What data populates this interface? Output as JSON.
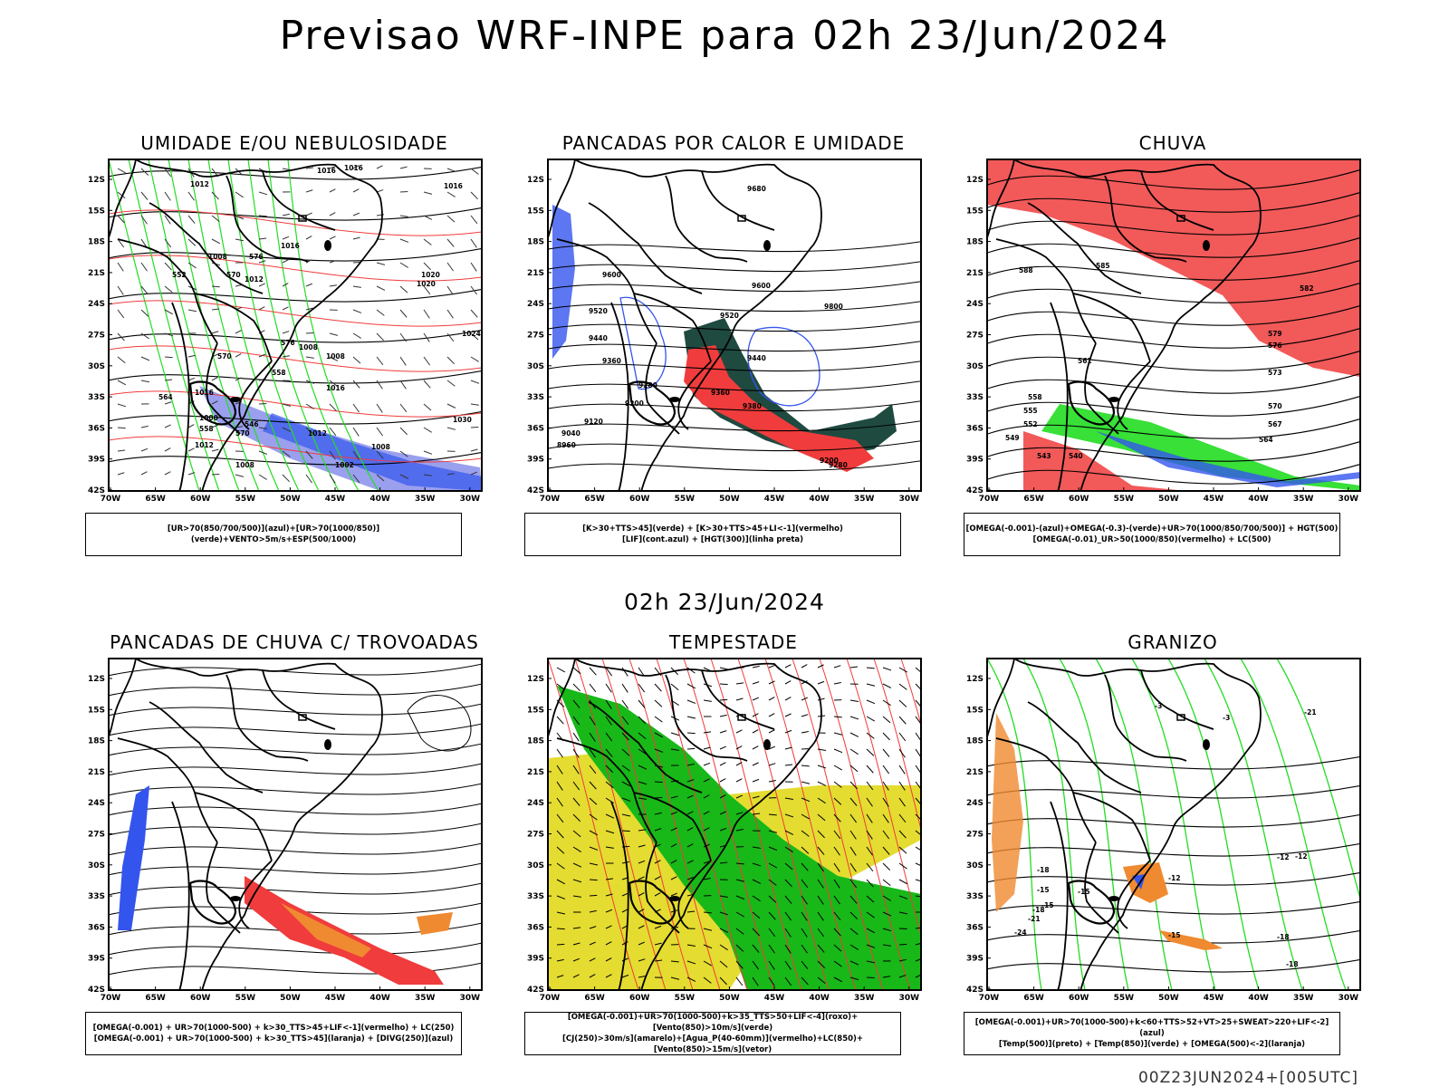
{
  "title": "Previsao WRF-INPE  para 02h 23/Jun/2024",
  "mid_title": "02h 23/Jun/2024",
  "footer": "00Z23JUN2024+[005UTC]",
  "axes": {
    "lat_ticks": [
      "12S",
      "15S",
      "18S",
      "21S",
      "24S",
      "27S",
      "30S",
      "33S",
      "36S",
      "39S",
      "42S"
    ],
    "lon_ticks": [
      "70W",
      "65W",
      "60W",
      "55W",
      "50W",
      "45W",
      "40W",
      "35W",
      "30W"
    ]
  },
  "colors": {
    "red": "#f03c3c",
    "green": "#22dd22",
    "blue": "#3355ee",
    "lavender": "#9aa0ee",
    "teal": "#1f4a40",
    "orange": "#f08a30",
    "yellow": "#e4dc30",
    "dkgreen": "#18b818"
  },
  "panels": [
    {
      "id": "umidade",
      "title": "UMIDADE E/OU NEBULOSIDADE",
      "legend": [
        "[UR>70(850/700/500)](azul)+[UR>70(1000/850)](verde)+VENTO>5m/s+ESP(500/1000)"
      ],
      "labels": [
        "1012",
        "1016",
        "1016",
        "1008",
        "1016",
        "1012",
        "1008",
        "1020",
        "1016",
        "1012",
        "1024",
        "1008",
        "1000",
        "1008",
        "1012",
        "1016",
        "1020",
        "1016",
        "1008",
        "1002",
        "1030",
        "570",
        "576",
        "576",
        "570",
        "564",
        "558",
        "552",
        "546",
        "570",
        "558"
      ]
    },
    {
      "id": "pancadas_calor",
      "title": "PANCADAS POR CALOR E UMIDADE",
      "legend": [
        "[K>30+TTS>45](verde) + [K>30+TTS>45+LI<-1](vermelho)",
        "[LIF](cont.azul) + [HGT(300)](linha preta)"
      ],
      "labels": [
        "9680",
        "9600",
        "9600",
        "9520",
        "9800",
        "9520",
        "9440",
        "9360",
        "9280",
        "9200",
        "9120",
        "9040",
        "8960",
        "9440",
        "9380",
        "9280",
        "9200",
        "9360"
      ]
    },
    {
      "id": "chuva",
      "title": "CHUVA",
      "legend": [
        "[OMEGA(-0.001)-(azul)+OMEGA(-0.3)-(verde)+UR>70(1000/850/700/500)] + HGT(500)",
        "[OMEGA(-0.01)_UR>50(1000/850)(vermelho) + LC(500)"
      ],
      "labels": [
        "585",
        "588",
        "582",
        "579",
        "576",
        "573",
        "570",
        "567",
        "564",
        "561",
        "558",
        "555",
        "552",
        "549",
        "543",
        "540"
      ]
    },
    {
      "id": "pancadas_trovoadas",
      "title": "PANCADAS DE CHUVA C/ TROVOADAS",
      "legend": [
        "[OMEGA(-0.001) + UR>70(1000-500) + k>30_TTS>45+LIF<-1](vermelho) + LC(250)",
        "[OMEGA(-0.001) + UR>70(1000-500) + k>30_TTS>45](laranja) + [DIVG(250)](azul)"
      ],
      "labels": []
    },
    {
      "id": "tempestade",
      "title": "TEMPESTADE",
      "legend": [
        "[OMEGA(-0.001)+UR>70(1000-500)+k>35_TTS>50+LIF<-4](roxo)+[Vento(850)>10m/s](verde)",
        "[CJ(250)>30m/s](amarelo)+[Agua_P(40-60mm)](vermelho)+LC(850)+[Vento(850)>15m/s](vetor)"
      ],
      "labels": []
    },
    {
      "id": "granizo",
      "title": "GRANIZO",
      "legend": [
        "[OMEGA(-0.001)+UR>70(1000-500)+k<60+TTS>52+VT>25+SWEAT>220+LIF<-2](azul)",
        "[Temp(500)](preto) + [Temp(850)](verde) + [OMEGA(500)<-2](laranja)"
      ],
      "labels": [
        "-3",
        "-3",
        "-21",
        "-12",
        "-18",
        "-15",
        "-18",
        "-21",
        "-24",
        "-15",
        "-18",
        "-12",
        "-12",
        "-15",
        "-18",
        "-15"
      ]
    }
  ]
}
